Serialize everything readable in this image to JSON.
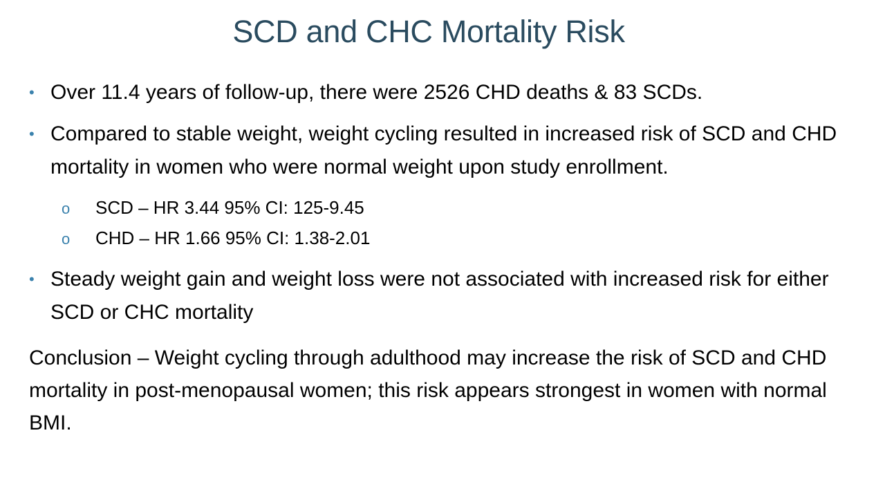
{
  "slide": {
    "title": "SCD and CHC Mortality Risk",
    "bullets": [
      "Over 11.4 years of follow-up, there were 2526 CHD deaths & 83 SCDs.",
      "Compared to stable weight, weight cycling resulted in increased risk of SCD and CHD mortality in women who were normal weight upon study enrollment."
    ],
    "sub_bullets": [
      "SCD – HR 3.44 95% CI: 125-9.45",
      "CHD – HR 1.66 95% CI: 1.38-2.01"
    ],
    "bullet3": "Steady weight gain and weight loss were not associated with increased risk for either SCD or CHC mortality",
    "conclusion": "Conclusion – Weight cycling through adulthood may increase the risk of SCD and CHD mortality in post-menopausal women; this risk appears strongest in women with normal BMI.",
    "bullet_glyph": "•",
    "sub_bullet_glyph": "o",
    "colors": {
      "title": "#2a4b5f",
      "bullet": "#3b82ad",
      "text": "#000000"
    }
  }
}
